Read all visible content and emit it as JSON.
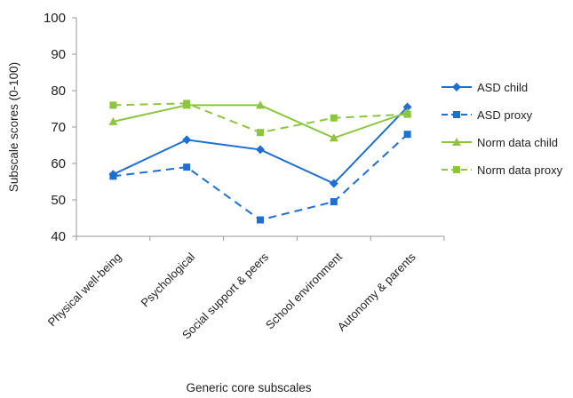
{
  "chart_data": {
    "type": "line",
    "title": "",
    "xlabel": "Generic core subscales",
    "ylabel": "Subscale scores (0-100)",
    "ylim": [
      40,
      100
    ],
    "yticks": [
      40,
      50,
      60,
      70,
      80,
      90,
      100
    ],
    "grid": false,
    "legend_position": "right",
    "categories": [
      "Physical well-being",
      "Psychological",
      "Social support & peers",
      "School environment",
      "Autonomy & parents"
    ],
    "series": [
      {
        "name": "ASD child",
        "values": [
          57,
          66.5,
          63.8,
          54.5,
          75.5
        ],
        "color": "#1f6fd1",
        "dashed": false,
        "marker": "diamond"
      },
      {
        "name": "ASD proxy",
        "values": [
          56.5,
          59,
          44.5,
          49.5,
          68
        ],
        "color": "#1f6fd1",
        "dashed": true,
        "marker": "square"
      },
      {
        "name": "Norm data child",
        "values": [
          71.5,
          76,
          76,
          67,
          74
        ],
        "color": "#8cc63f",
        "dashed": false,
        "marker": "triangle"
      },
      {
        "name": "Norm data proxy",
        "values": [
          76,
          76.5,
          68.5,
          72.5,
          73.5
        ],
        "color": "#8cc63f",
        "dashed": true,
        "marker": "square"
      }
    ]
  }
}
